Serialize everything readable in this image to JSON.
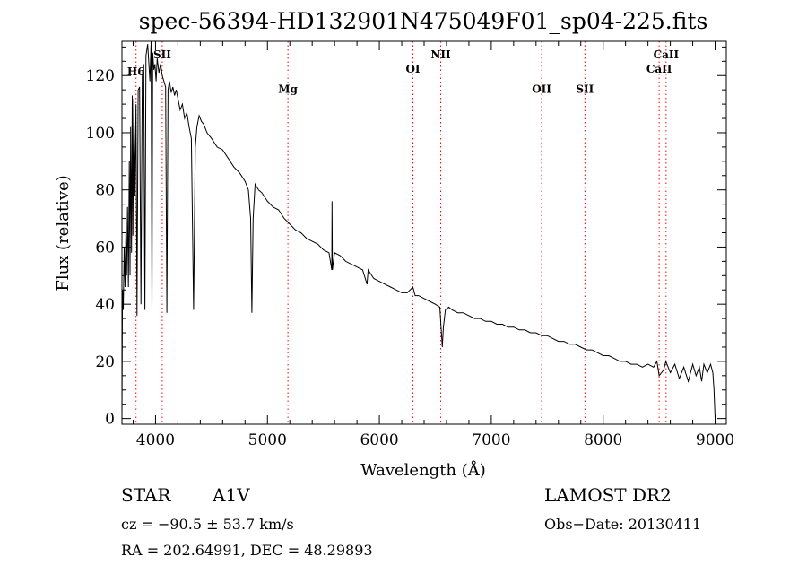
{
  "chart_data": {
    "type": "line",
    "title": "spec-56394-HD132901N475049F01_sp04-225.fits",
    "xlabel": "Wavelength (Å)",
    "ylabel": "Flux (relative)",
    "xlim": [
      3700,
      9100
    ],
    "ylim": [
      -2,
      132
    ],
    "xticks": [
      4000,
      5000,
      6000,
      7000,
      8000,
      9000
    ],
    "yticks": [
      0,
      20,
      40,
      60,
      80,
      100,
      120
    ],
    "grid": false,
    "series": [
      {
        "points": [
          [
            3700,
            0
          ],
          [
            3705,
            45
          ],
          [
            3712,
            38
          ],
          [
            3720,
            60
          ],
          [
            3728,
            46
          ],
          [
            3735,
            65
          ],
          [
            3742,
            50
          ],
          [
            3750,
            74
          ],
          [
            3758,
            46
          ],
          [
            3766,
            90
          ],
          [
            3772,
            50
          ],
          [
            3778,
            102
          ],
          [
            3786,
            58
          ],
          [
            3792,
            113
          ],
          [
            3798,
            64
          ],
          [
            3806,
            112
          ],
          [
            3815,
            78
          ],
          [
            3826,
            110
          ],
          [
            3835,
            36
          ],
          [
            3845,
            115
          ],
          [
            3858,
            116
          ],
          [
            3870,
            40
          ],
          [
            3882,
            120
          ],
          [
            3895,
            124
          ],
          [
            3905,
            38
          ],
          [
            3915,
            127
          ],
          [
            3930,
            131
          ],
          [
            3950,
            118
          ],
          [
            3960,
            132
          ],
          [
            3968,
            38
          ],
          [
            3975,
            128
          ],
          [
            3985,
            122
          ],
          [
            3995,
            124
          ],
          [
            4005,
            118
          ],
          [
            4015,
            126
          ],
          [
            4030,
            121
          ],
          [
            4045,
            124
          ],
          [
            4060,
            120
          ],
          [
            4075,
            118
          ],
          [
            4090,
            116
          ],
          [
            4101,
            37
          ],
          [
            4112,
            115
          ],
          [
            4125,
            118
          ],
          [
            4140,
            114
          ],
          [
            4155,
            116
          ],
          [
            4170,
            113
          ],
          [
            4185,
            115
          ],
          [
            4200,
            112
          ],
          [
            4220,
            108
          ],
          [
            4240,
            110
          ],
          [
            4260,
            105
          ],
          [
            4280,
            107
          ],
          [
            4300,
            102
          ],
          [
            4320,
            98
          ],
          [
            4340,
            38
          ],
          [
            4355,
            95
          ],
          [
            4370,
            102
          ],
          [
            4390,
            106
          ],
          [
            4410,
            104
          ],
          [
            4430,
            103
          ],
          [
            4460,
            100
          ],
          [
            4500,
            98
          ],
          [
            4550,
            95
          ],
          [
            4600,
            94
          ],
          [
            4650,
            91
          ],
          [
            4700,
            88
          ],
          [
            4750,
            86
          ],
          [
            4800,
            83
          ],
          [
            4830,
            80
          ],
          [
            4850,
            70
          ],
          [
            4861,
            37
          ],
          [
            4872,
            70
          ],
          [
            4890,
            82
          ],
          [
            4920,
            80
          ],
          [
            4950,
            79
          ],
          [
            5000,
            76
          ],
          [
            5050,
            74
          ],
          [
            5100,
            73
          ],
          [
            5150,
            70
          ],
          [
            5200,
            68
          ],
          [
            5250,
            66
          ],
          [
            5300,
            65
          ],
          [
            5350,
            63
          ],
          [
            5400,
            62
          ],
          [
            5450,
            61
          ],
          [
            5500,
            59
          ],
          [
            5550,
            58
          ],
          [
            5575,
            52
          ],
          [
            5577,
            76
          ],
          [
            5580,
            52
          ],
          [
            5600,
            58
          ],
          [
            5650,
            57
          ],
          [
            5700,
            55
          ],
          [
            5750,
            54
          ],
          [
            5800,
            53
          ],
          [
            5850,
            52
          ],
          [
            5890,
            47
          ],
          [
            5900,
            52
          ],
          [
            5950,
            49
          ],
          [
            6000,
            48
          ],
          [
            6050,
            47
          ],
          [
            6100,
            46
          ],
          [
            6150,
            45
          ],
          [
            6200,
            44
          ],
          [
            6250,
            44
          ],
          [
            6300,
            46
          ],
          [
            6320,
            43
          ],
          [
            6350,
            43
          ],
          [
            6400,
            42
          ],
          [
            6450,
            41
          ],
          [
            6500,
            40
          ],
          [
            6540,
            39
          ],
          [
            6555,
            30
          ],
          [
            6563,
            25
          ],
          [
            6572,
            32
          ],
          [
            6590,
            38
          ],
          [
            6620,
            39
          ],
          [
            6650,
            38
          ],
          [
            6700,
            37
          ],
          [
            6750,
            37
          ],
          [
            6800,
            36
          ],
          [
            6850,
            35
          ],
          [
            6900,
            35
          ],
          [
            6950,
            34
          ],
          [
            7000,
            34
          ],
          [
            7050,
            33
          ],
          [
            7100,
            33
          ],
          [
            7150,
            32
          ],
          [
            7200,
            32
          ],
          [
            7250,
            31
          ],
          [
            7300,
            31
          ],
          [
            7350,
            30
          ],
          [
            7400,
            30
          ],
          [
            7450,
            29
          ],
          [
            7500,
            29
          ],
          [
            7550,
            28
          ],
          [
            7600,
            27
          ],
          [
            7650,
            27
          ],
          [
            7700,
            26
          ],
          [
            7750,
            26
          ],
          [
            7800,
            25
          ],
          [
            7850,
            24
          ],
          [
            7900,
            24
          ],
          [
            7950,
            23
          ],
          [
            8000,
            22
          ],
          [
            8050,
            22
          ],
          [
            8100,
            21
          ],
          [
            8150,
            20
          ],
          [
            8200,
            20
          ],
          [
            8250,
            19
          ],
          [
            8300,
            19
          ],
          [
            8350,
            18
          ],
          [
            8400,
            19
          ],
          [
            8450,
            18
          ],
          [
            8480,
            20
          ],
          [
            8500,
            15
          ],
          [
            8540,
            17
          ],
          [
            8560,
            20
          ],
          [
            8600,
            16
          ],
          [
            8640,
            19
          ],
          [
            8680,
            14
          ],
          [
            8720,
            18
          ],
          [
            8760,
            13
          ],
          [
            8800,
            19
          ],
          [
            8830,
            15
          ],
          [
            8860,
            18
          ],
          [
            8880,
            13
          ],
          [
            8900,
            19
          ],
          [
            8930,
            16
          ],
          [
            8960,
            19
          ],
          [
            8980,
            16
          ],
          [
            8990,
            10
          ],
          [
            9000,
            0
          ]
        ]
      }
    ],
    "lines": [
      {
        "label": "H6",
        "x": 3826,
        "label_y": 120
      },
      {
        "label": "SII",
        "x": 4060,
        "label_y": 126
      },
      {
        "label": "Mg",
        "x": 5183,
        "label_y": 114
      },
      {
        "label": "OI",
        "x": 6300,
        "label_y": 121
      },
      {
        "label": "NII",
        "x": 6548,
        "label_y": 126
      },
      {
        "label": "OII",
        "x": 7450,
        "label_y": 114
      },
      {
        "label": "SII",
        "x": 7837,
        "label_y": 114
      },
      {
        "label": "CaII",
        "x": 8500,
        "label_y": 121
      },
      {
        "label": "CaII",
        "x": 8562,
        "label_y": 126
      }
    ],
    "line_color": "#000000",
    "marker_color": "#ff0000"
  },
  "info": {
    "object_class": "STAR",
    "subclass": "A1V",
    "survey": "LAMOST DR2",
    "cz": "cz = −90.5 ± 53.7 km/s",
    "obs_date": "Obs−Date: 20130411",
    "radec": "RA = 202.64991, DEC =  48.29893"
  }
}
